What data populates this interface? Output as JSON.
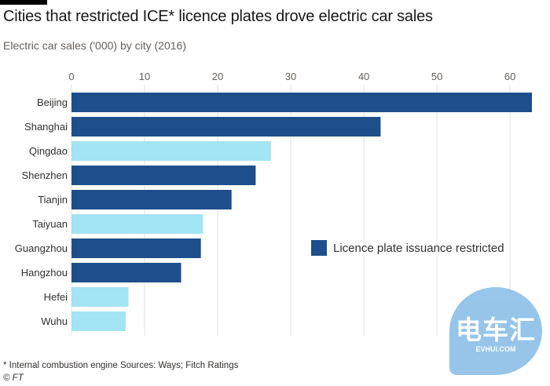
{
  "header": {
    "title": "Cities that restricted ICE* licence plates drove electric car sales",
    "subtitle": "Electric car sales ('000) by city (2016)"
  },
  "chart_data": {
    "type": "bar",
    "orientation": "horizontal",
    "title": "Cities that restricted ICE* licence plates drove electric car sales",
    "subtitle": "Electric car sales ('000) by city (2016)",
    "xlabel": "",
    "ylabel": "",
    "xlim": [
      0,
      63
    ],
    "xticks": [
      0,
      10,
      20,
      30,
      40,
      50,
      60
    ],
    "grid": true,
    "categories": [
      "Beijing",
      "Shanghai",
      "Qingdao",
      "Shenzhen",
      "Tianjin",
      "Taiyuan",
      "Guangzhou",
      "Hangzhou",
      "Hefei",
      "Wuhu"
    ],
    "values": [
      63,
      42.3,
      27.3,
      25.2,
      21.9,
      18,
      17.7,
      15,
      7.8,
      7.4
    ],
    "restricted": [
      true,
      true,
      false,
      true,
      true,
      false,
      true,
      true,
      false,
      false
    ],
    "colors": {
      "restricted": "#1f4e8c",
      "other": "#a3e4f5"
    },
    "legend": {
      "label": "Licence plate issuance restricted",
      "position": "right-middle"
    }
  },
  "footer": {
    "note": "* Internal combustion engine   Sources: Ways; Fitch Ratings",
    "credit": "© FT"
  },
  "watermark": {
    "logo": "电车汇",
    "url": "EVHUI.COM"
  }
}
